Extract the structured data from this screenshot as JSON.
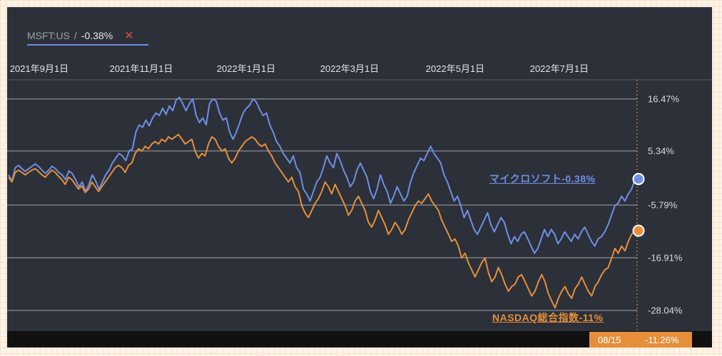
{
  "legend": {
    "ticker": "MSFT:US",
    "separator": "/",
    "value": "-0.38%",
    "close": "✕"
  },
  "colors": {
    "msft": "#6f8fe6",
    "nasdaq": "#e58f3b",
    "grid": "#8a8e96",
    "background": "#2c3039"
  },
  "badge": {
    "date": "08/15",
    "value": "-11.26%"
  },
  "chart_data": {
    "type": "line",
    "x_ticks": [
      "2021年9月1日",
      "2021年11月1日",
      "2022年1月1日",
      "2022年3月1日",
      "2022年5月1日",
      "2022年7月1日"
    ],
    "y_ticks": [
      "16.47%",
      "5.34%",
      "-5.79%",
      "-16.91%",
      "-28.04%"
    ],
    "ylim": [
      -30,
      20
    ],
    "grid": true,
    "series": [
      {
        "name": "マイクロソフト-0.38%",
        "label": "マイクロソフト-0.38%",
        "values": [
          0.5,
          -0.8,
          2.0,
          2.5,
          1.8,
          1.2,
          1.8,
          2.3,
          2.8,
          2.2,
          1.5,
          0.8,
          1.5,
          2.3,
          1.8,
          1.0,
          0.5,
          -0.5,
          1.3,
          0.8,
          -0.5,
          -2.0,
          -1.0,
          -3.0,
          -1.5,
          0.5,
          -0.8,
          -2.5,
          -1.0,
          0.5,
          1.5,
          3.0,
          4.0,
          5.0,
          4.5,
          3.5,
          5.5,
          6.0,
          9.5,
          11.0,
          10.5,
          12.0,
          10.8,
          12.5,
          13.5,
          13.0,
          14.5,
          13.2,
          15.0,
          14.0,
          16.2,
          16.8,
          15.5,
          14.0,
          15.5,
          16.5,
          13.0,
          11.5,
          12.5,
          11.0,
          15.5,
          16.5,
          16.0,
          13.5,
          12.0,
          12.5,
          9.5,
          8.0,
          9.5,
          11.5,
          13.5,
          14.5,
          15.2,
          16.5,
          15.8,
          14.2,
          13.0,
          13.5,
          11.0,
          9.5,
          7.5,
          6.5,
          5.0,
          4.0,
          3.0,
          4.5,
          2.0,
          1.0,
          -2.5,
          -3.5,
          -5.0,
          -3.0,
          -1.0,
          0.0,
          2.0,
          4.5,
          3.0,
          2.0,
          5.0,
          3.5,
          1.5,
          0.0,
          -2.0,
          -1.0,
          1.5,
          3.0,
          1.5,
          0.0,
          -3.0,
          -4.5,
          -2.5,
          0.5,
          -1.5,
          -3.0,
          -5.5,
          -4.0,
          -2.0,
          -3.5,
          -5.0,
          -4.0,
          -1.0,
          1.0,
          2.5,
          4.0,
          3.5,
          5.0,
          6.5,
          5.0,
          4.0,
          3.0,
          0.5,
          -1.0,
          -3.0,
          -5.0,
          -4.0,
          -6.0,
          -8.5,
          -7.0,
          -9.0,
          -11.0,
          -12.0,
          -10.5,
          -9.0,
          -7.5,
          -10.0,
          -11.5,
          -10.0,
          -8.5,
          -9.5,
          -12.0,
          -14.0,
          -12.5,
          -13.5,
          -12.0,
          -11.5,
          -13.0,
          -14.5,
          -16.0,
          -15.0,
          -13.0,
          -11.0,
          -12.5,
          -11.0,
          -12.0,
          -14.0,
          -13.0,
          -11.5,
          -12.5,
          -13.5,
          -12.0,
          -13.0,
          -11.5,
          -10.5,
          -12.0,
          -13.5,
          -14.5,
          -13.0,
          -12.5,
          -11.5,
          -10.0,
          -8.0,
          -6.0,
          -5.5,
          -4.0,
          -5.0,
          -3.5,
          -2.5,
          -0.38
        ]
      },
      {
        "name": "NASDAQ総合指数-11%",
        "label": "NASDAQ総合指数-11%",
        "values": [
          0.0,
          -1.0,
          1.0,
          1.5,
          1.0,
          0.5,
          1.0,
          1.5,
          1.8,
          1.2,
          0.5,
          0.0,
          0.8,
          1.5,
          1.0,
          0.2,
          -0.5,
          -1.5,
          0.0,
          -0.5,
          -1.5,
          -2.5,
          -1.8,
          -3.2,
          -2.5,
          -1.0,
          -2.0,
          -3.0,
          -2.0,
          -1.0,
          0.0,
          1.0,
          2.0,
          2.5,
          2.0,
          1.0,
          2.5,
          3.0,
          5.0,
          6.0,
          5.5,
          6.5,
          6.0,
          7.0,
          7.5,
          7.0,
          8.0,
          7.5,
          8.5,
          8.0,
          8.5,
          9.0,
          8.0,
          7.0,
          7.5,
          8.0,
          5.5,
          4.0,
          5.0,
          4.5,
          7.0,
          8.5,
          8.0,
          6.5,
          5.5,
          6.0,
          4.0,
          3.0,
          4.0,
          5.5,
          6.5,
          7.5,
          8.0,
          8.5,
          8.0,
          7.0,
          6.5,
          7.0,
          5.5,
          4.5,
          3.0,
          2.0,
          1.0,
          0.0,
          -1.0,
          0.0,
          -2.0,
          -3.0,
          -6.0,
          -7.5,
          -8.5,
          -7.0,
          -5.5,
          -4.5,
          -3.0,
          -1.0,
          -2.0,
          -3.5,
          -1.5,
          -3.0,
          -4.5,
          -6.0,
          -8.0,
          -7.0,
          -5.0,
          -4.0,
          -5.5,
          -7.0,
          -9.5,
          -10.5,
          -9.0,
          -7.0,
          -8.5,
          -10.0,
          -12.0,
          -11.0,
          -9.5,
          -10.5,
          -12.0,
          -11.0,
          -9.0,
          -7.5,
          -6.0,
          -5.0,
          -5.5,
          -4.5,
          -3.5,
          -5.0,
          -6.0,
          -7.0,
          -9.0,
          -10.5,
          -12.0,
          -13.5,
          -13.0,
          -14.5,
          -17.0,
          -16.0,
          -18.0,
          -19.5,
          -21.0,
          -19.5,
          -18.0,
          -17.0,
          -20.0,
          -22.0,
          -21.0,
          -19.0,
          -20.5,
          -22.5,
          -24.0,
          -23.0,
          -22.5,
          -21.0,
          -20.5,
          -22.0,
          -23.5,
          -25.0,
          -24.0,
          -22.0,
          -20.5,
          -22.0,
          -24.5,
          -26.0,
          -27.5,
          -25.5,
          -24.0,
          -23.0,
          -24.5,
          -25.5,
          -23.5,
          -22.5,
          -21.0,
          -22.5,
          -24.0,
          -25.0,
          -23.0,
          -22.0,
          -20.5,
          -19.5,
          -19.0,
          -17.0,
          -15.0,
          -16.0,
          -14.5,
          -15.5,
          -13.5,
          -12.0,
          -11.26
        ]
      }
    ]
  }
}
